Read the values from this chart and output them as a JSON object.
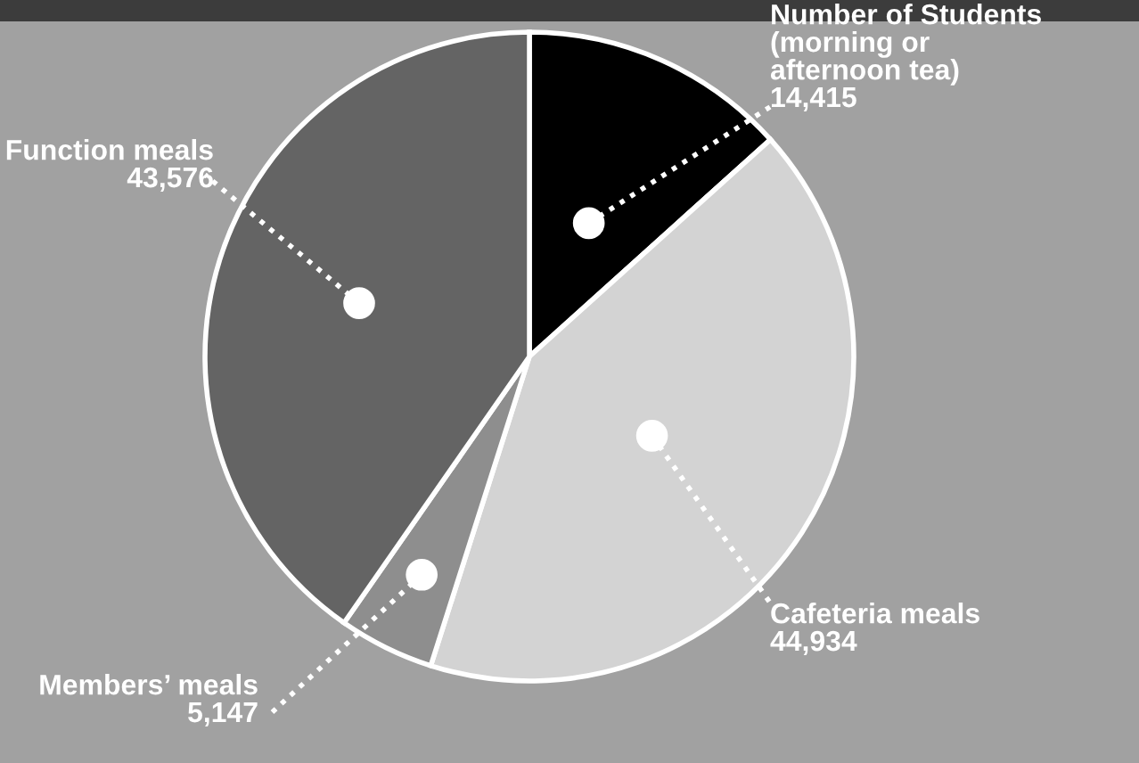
{
  "chart_data": {
    "type": "pie",
    "categories": [
      "Number of Students\n(morning or\nafternoon tea)",
      "Cafeteria meals",
      "Members’ meals",
      "Function meals"
    ],
    "values": [
      14415,
      44934,
      5147,
      43576
    ],
    "value_labels": [
      "14,415",
      "44,934",
      "5,147",
      "43,576"
    ],
    "colors": [
      "#000000",
      "#d3d3d3",
      "#8e8e8e",
      "#646464"
    ],
    "legend": false
  }
}
